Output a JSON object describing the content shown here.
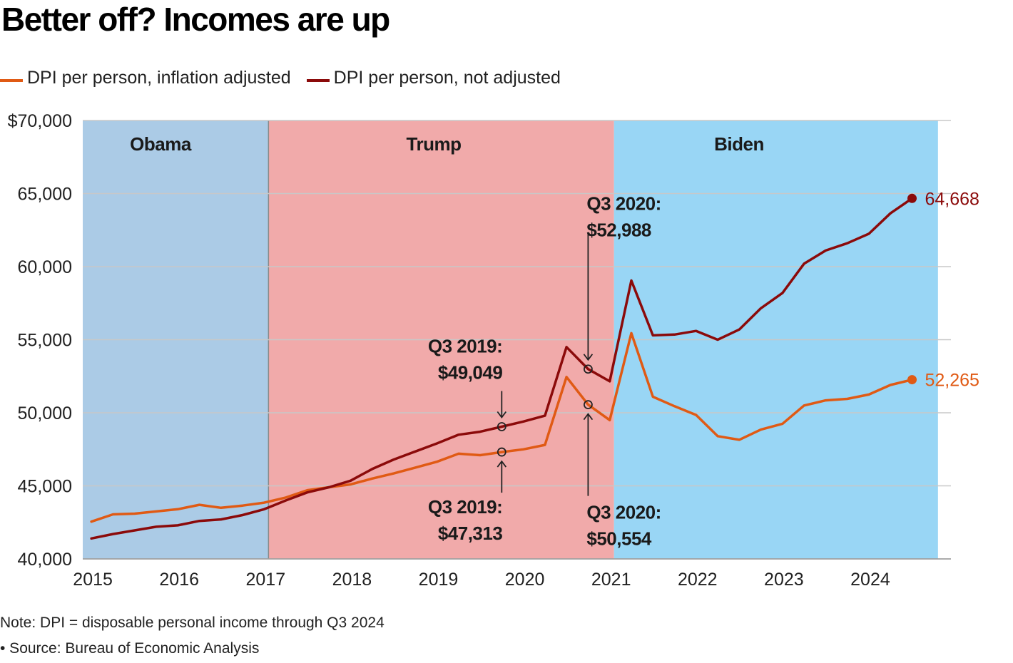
{
  "title": "Better off? Incomes are up",
  "legend": [
    {
      "label": "DPI per person, inflation adjusted",
      "color": "#e05a14"
    },
    {
      "label": "DPI per person, not adjusted",
      "color": "#8b0a0a"
    }
  ],
  "notes": {
    "note": "Note: DPI = disposable personal income through Q3 2024",
    "source": "• Source: Bureau of Economic Analysis"
  },
  "chart_data": {
    "type": "line",
    "ylim": [
      40000,
      70000
    ],
    "yticks": [
      40000,
      45000,
      50000,
      55000,
      60000,
      65000,
      70000
    ],
    "ytick_labels": [
      "40,000",
      "45,000",
      "50,000",
      "55,000",
      "60,000",
      "65,000",
      "$70,000"
    ],
    "xlim": [
      2014.9,
      2024.95
    ],
    "xticks": [
      2015,
      2016,
      2017,
      2018,
      2019,
      2020,
      2021,
      2022,
      2023,
      2024
    ],
    "xtick_labels": [
      "2015",
      "2016",
      "2017",
      "2018",
      "2019",
      "2020",
      "2021",
      "2022",
      "2023",
      "2024"
    ],
    "grid": "horizontal",
    "bands": [
      {
        "label": "Obama",
        "start": 2014.9,
        "end": 2017.05,
        "color": "#abcbe6"
      },
      {
        "label": "Trump",
        "start": 2017.05,
        "end": 2021.05,
        "color": "#f1aaaa"
      },
      {
        "label": "Biden",
        "start": 2021.05,
        "end": 2024.8,
        "color": "#99d6f5"
      }
    ],
    "x": [
      2015.0,
      2015.25,
      2015.5,
      2015.75,
      2016.0,
      2016.25,
      2016.5,
      2016.75,
      2017.0,
      2017.25,
      2017.5,
      2017.75,
      2018.0,
      2018.25,
      2018.5,
      2018.75,
      2019.0,
      2019.25,
      2019.5,
      2019.75,
      2020.0,
      2020.25,
      2020.5,
      2020.75,
      2021.0,
      2021.25,
      2021.5,
      2021.75,
      2022.0,
      2022.25,
      2022.5,
      2022.75,
      2023.0,
      2023.25,
      2023.5,
      2023.75,
      2024.0,
      2024.25,
      2024.5
    ],
    "series": [
      {
        "name": "DPI per person, inflation adjusted",
        "color": "#e05a14",
        "values": [
          42550,
          43050,
          43100,
          43250,
          43400,
          43700,
          43500,
          43650,
          43850,
          44200,
          44700,
          44900,
          45100,
          45500,
          45850,
          46250,
          46650,
          47200,
          47100,
          47313,
          47500,
          47800,
          52450,
          50554,
          49500,
          55450,
          51100,
          50450,
          49850,
          48400,
          48150,
          48850,
          49250,
          50500,
          50850,
          50950,
          51250,
          51900,
          52265
        ]
      },
      {
        "name": "DPI per person, not adjusted",
        "color": "#8b0a0a",
        "values": [
          41400,
          41700,
          41950,
          42200,
          42300,
          42600,
          42700,
          43000,
          43400,
          44000,
          44550,
          44900,
          45350,
          46150,
          46800,
          47350,
          47900,
          48500,
          48700,
          49049,
          49400,
          49800,
          54500,
          52988,
          52150,
          59050,
          55300,
          55350,
          55600,
          55000,
          55700,
          57150,
          58200,
          60200,
          61100,
          61600,
          62250,
          63650,
          64668
        ]
      }
    ],
    "annotations": [
      {
        "series": 0,
        "index": 19,
        "label_line1": "Q3 2019:",
        "label_line2": "$47,313",
        "placement": "below"
      },
      {
        "series": 1,
        "index": 19,
        "label_line1": "Q3 2019:",
        "label_line2": "$49,049",
        "placement": "above"
      },
      {
        "series": 0,
        "index": 23,
        "label_line1": "Q3 2020:",
        "label_line2": "$50,554",
        "placement": "below"
      },
      {
        "series": 1,
        "index": 23,
        "label_line1": "Q3 2020:",
        "label_line2": "$52,988",
        "placement": "above"
      }
    ],
    "end_labels": [
      "52,265",
      "64,668"
    ]
  }
}
